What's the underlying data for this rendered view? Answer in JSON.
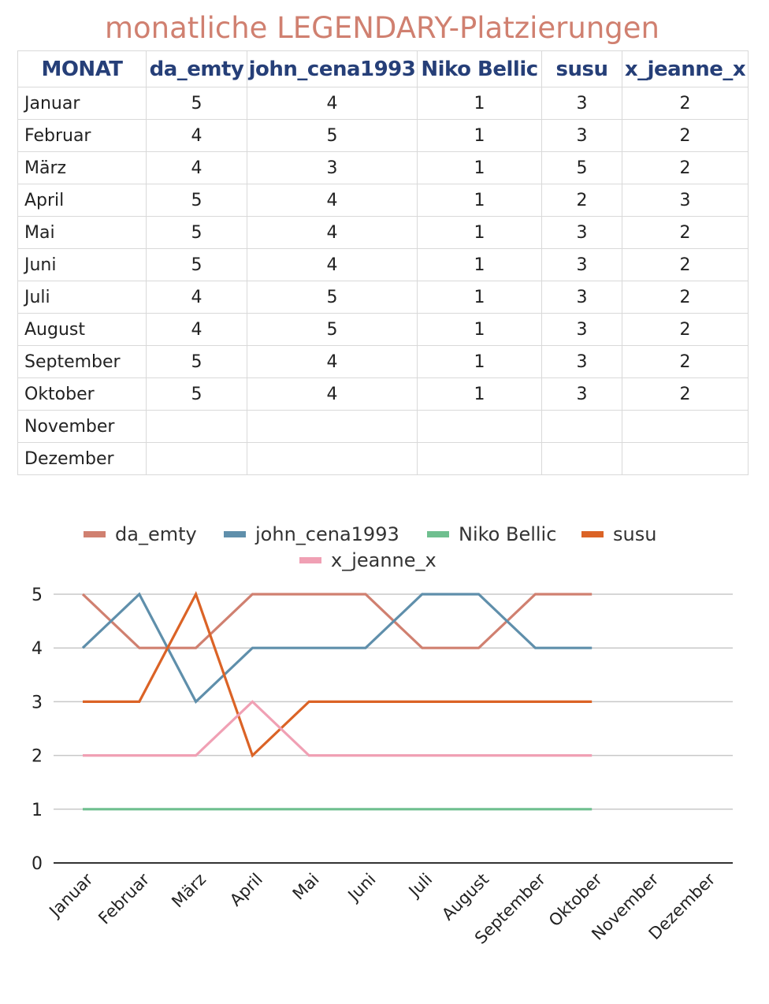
{
  "title": "monatliche LEGENDARY-Platzierungen",
  "table": {
    "headers": [
      "MONAT",
      "da_emty",
      "john_cena1993",
      "Niko Bellic",
      "susu",
      "x_jeanne_x"
    ],
    "rows": [
      [
        "Januar",
        "5",
        "4",
        "1",
        "3",
        "2"
      ],
      [
        "Februar",
        "4",
        "5",
        "1",
        "3",
        "2"
      ],
      [
        "März",
        "4",
        "3",
        "1",
        "5",
        "2"
      ],
      [
        "April",
        "5",
        "4",
        "1",
        "2",
        "3"
      ],
      [
        "Mai",
        "5",
        "4",
        "1",
        "3",
        "2"
      ],
      [
        "Juni",
        "5",
        "4",
        "1",
        "3",
        "2"
      ],
      [
        "Juli",
        "4",
        "5",
        "1",
        "3",
        "2"
      ],
      [
        "August",
        "4",
        "5",
        "1",
        "3",
        "2"
      ],
      [
        "September",
        "5",
        "4",
        "1",
        "3",
        "2"
      ],
      [
        "Oktober",
        "5",
        "4",
        "1",
        "3",
        "2"
      ],
      [
        "November",
        "",
        "",
        "",
        "",
        ""
      ],
      [
        "Dezember",
        "",
        "",
        "",
        "",
        ""
      ]
    ]
  },
  "chart_data": {
    "type": "line",
    "title": "",
    "xlabel": "",
    "ylabel": "",
    "ylim": [
      0,
      5
    ],
    "yticks": [
      0,
      1,
      2,
      3,
      4,
      5
    ],
    "grid": true,
    "legend": "top-center",
    "categories": [
      "Januar",
      "Februar",
      "März",
      "April",
      "Mai",
      "Juni",
      "Juli",
      "August",
      "September",
      "Oktober",
      "November",
      "Dezember"
    ],
    "series": [
      {
        "name": "da_emty",
        "color": "#d08070",
        "values": [
          5,
          4,
          4,
          5,
          5,
          5,
          4,
          4,
          5,
          5,
          null,
          null
        ]
      },
      {
        "name": "john_cena1993",
        "color": "#5f8fab",
        "values": [
          4,
          5,
          3,
          4,
          4,
          4,
          5,
          5,
          4,
          4,
          null,
          null
        ]
      },
      {
        "name": "Niko Bellic",
        "color": "#6fbf8f",
        "values": [
          1,
          1,
          1,
          1,
          1,
          1,
          1,
          1,
          1,
          1,
          null,
          null
        ]
      },
      {
        "name": "susu",
        "color": "#db6326",
        "values": [
          3,
          3,
          5,
          2,
          3,
          3,
          3,
          3,
          3,
          3,
          null,
          null
        ]
      },
      {
        "name": "x_jeanne_x",
        "color": "#f0a0b4",
        "values": [
          2,
          2,
          2,
          3,
          2,
          2,
          2,
          2,
          2,
          2,
          null,
          null
        ]
      }
    ]
  }
}
